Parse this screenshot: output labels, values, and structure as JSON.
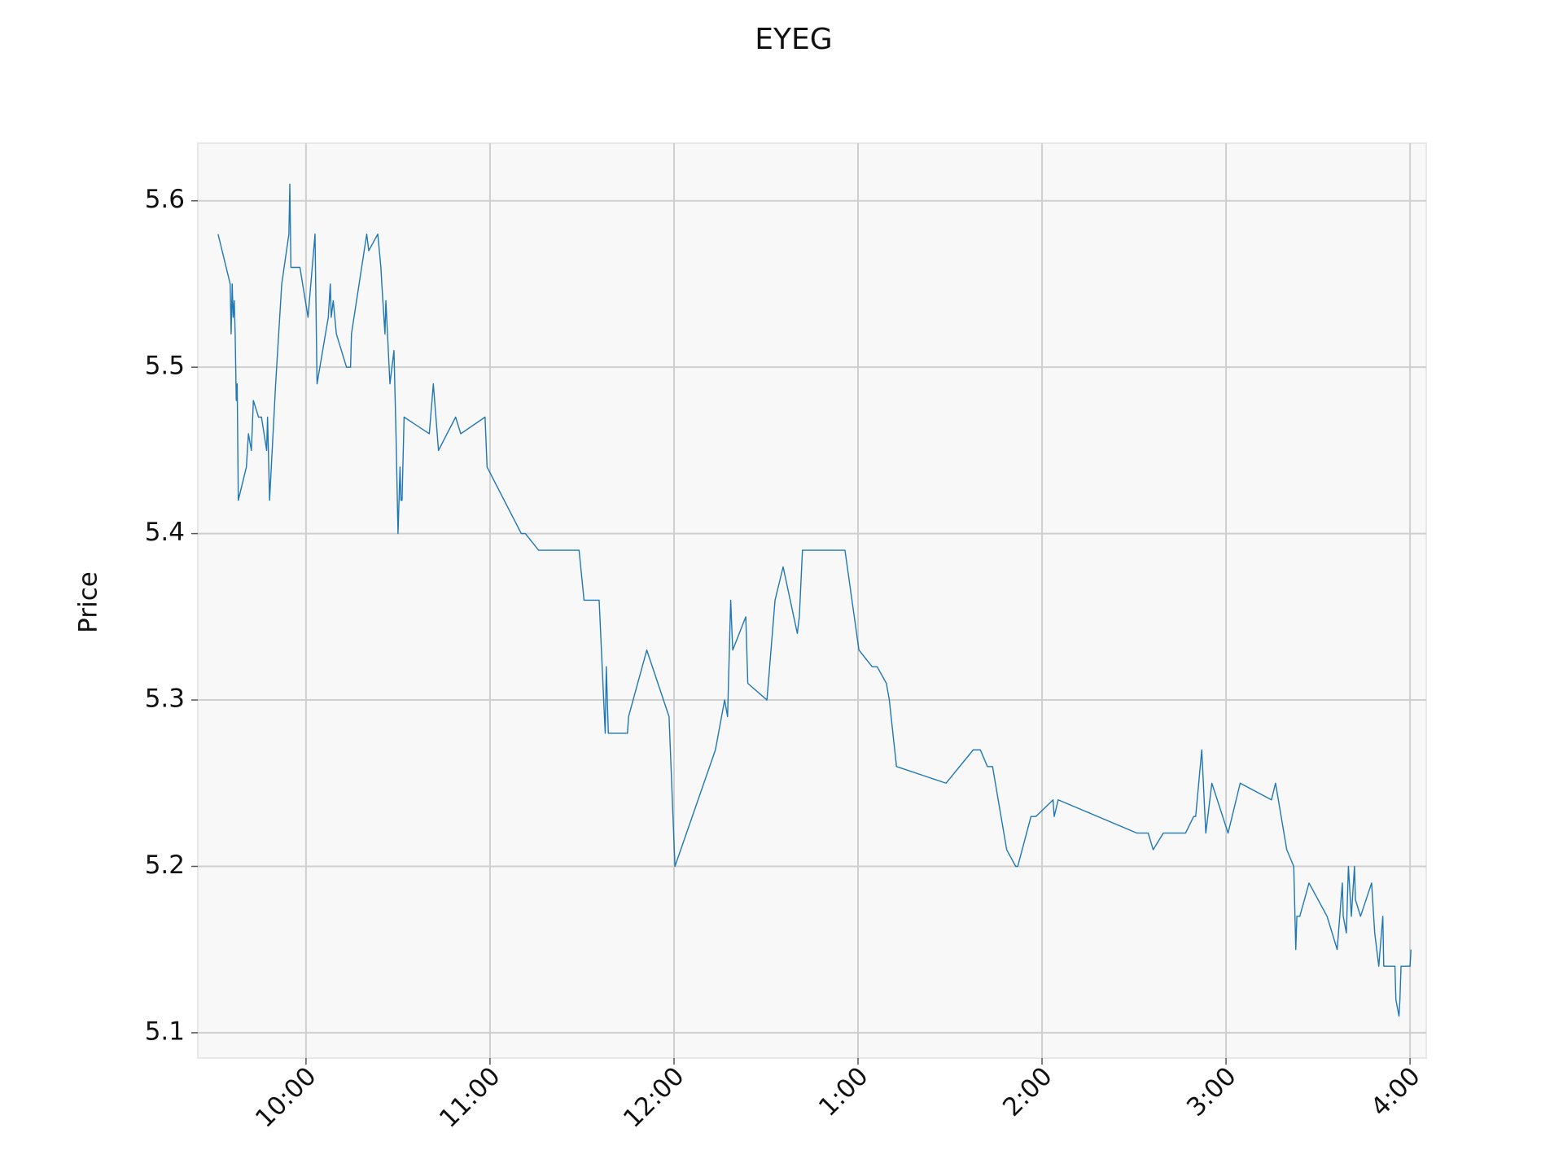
{
  "chart_data": {
    "type": "line",
    "title": "EYEG",
    "y_label": "Price",
    "x": [
      9.522,
      9.588,
      9.593,
      9.599,
      9.604,
      9.61,
      9.615,
      9.621,
      9.626,
      9.632,
      9.676,
      9.687,
      9.703,
      9.714,
      9.742,
      9.758,
      9.786,
      9.791,
      9.802,
      9.835,
      9.868,
      9.907,
      9.912,
      9.918,
      9.967,
      10.011,
      10.049,
      10.06,
      10.121,
      10.132,
      10.137,
      10.148,
      10.165,
      10.22,
      10.242,
      10.247,
      10.33,
      10.341,
      10.39,
      10.407,
      10.412,
      10.429,
      10.434,
      10.456,
      10.478,
      10.489,
      10.5,
      10.511,
      10.516,
      10.522,
      10.533,
      10.67,
      10.692,
      10.72,
      10.813,
      10.841,
      10.973,
      10.984,
      11.17,
      11.192,
      11.264,
      11.484,
      11.511,
      11.593,
      11.626,
      11.632,
      11.643,
      11.747,
      11.753,
      11.852,
      11.973,
      12.005,
      12.225,
      12.275,
      12.291,
      12.308,
      12.319,
      12.39,
      12.401,
      12.505,
      12.549,
      12.593,
      12.67,
      12.681,
      12.698,
      12.929,
      13.005,
      13.077,
      13.104,
      13.154,
      13.17,
      13.209,
      13.478,
      13.626,
      13.665,
      13.703,
      13.731,
      13.808,
      13.857,
      13.868,
      13.94,
      13.967,
      14.06,
      14.066,
      14.088,
      14.516,
      14.577,
      14.604,
      14.659,
      14.78,
      14.824,
      14.835,
      14.868,
      14.89,
      14.923,
      15.011,
      15.077,
      15.247,
      15.269,
      15.33,
      15.368,
      15.379,
      15.385,
      15.401,
      15.451,
      15.549,
      15.604,
      15.632,
      15.637,
      15.654,
      15.665,
      15.681,
      15.698,
      15.703,
      15.731,
      15.791,
      15.808,
      15.83,
      15.852,
      15.857,
      15.918,
      15.923,
      15.94,
      15.945,
      15.951,
      16.0,
      16.005
    ],
    "series": [
      {
        "name": "EYEG",
        "color": "#1f77b4",
        "values": [
          5.58,
          5.55,
          5.52,
          5.55,
          5.53,
          5.54,
          5.52,
          5.48,
          5.49,
          5.42,
          5.44,
          5.46,
          5.45,
          5.48,
          5.47,
          5.47,
          5.45,
          5.47,
          5.42,
          5.49,
          5.55,
          5.58,
          5.61,
          5.56,
          5.56,
          5.53,
          5.58,
          5.49,
          5.53,
          5.55,
          5.53,
          5.54,
          5.52,
          5.5,
          5.5,
          5.52,
          5.58,
          5.57,
          5.58,
          5.56,
          5.55,
          5.52,
          5.54,
          5.49,
          5.51,
          5.46,
          5.4,
          5.44,
          5.42,
          5.42,
          5.47,
          5.46,
          5.49,
          5.45,
          5.47,
          5.46,
          5.47,
          5.44,
          5.4,
          5.4,
          5.39,
          5.39,
          5.36,
          5.36,
          5.28,
          5.32,
          5.28,
          5.28,
          5.29,
          5.33,
          5.29,
          5.2,
          5.27,
          5.3,
          5.29,
          5.36,
          5.33,
          5.35,
          5.31,
          5.3,
          5.36,
          5.38,
          5.34,
          5.35,
          5.39,
          5.39,
          5.33,
          5.32,
          5.32,
          5.31,
          5.3,
          5.26,
          5.25,
          5.27,
          5.27,
          5.26,
          5.26,
          5.21,
          5.2,
          5.2,
          5.23,
          5.23,
          5.24,
          5.23,
          5.24,
          5.22,
          5.22,
          5.21,
          5.22,
          5.22,
          5.23,
          5.23,
          5.27,
          5.22,
          5.25,
          5.22,
          5.25,
          5.24,
          5.25,
          5.21,
          5.2,
          5.15,
          5.17,
          5.17,
          5.19,
          5.17,
          5.15,
          5.19,
          5.17,
          5.16,
          5.2,
          5.17,
          5.2,
          5.18,
          5.17,
          5.19,
          5.16,
          5.14,
          5.17,
          5.14,
          5.14,
          5.12,
          5.11,
          5.12,
          5.14,
          5.14,
          5.15
        ]
      }
    ],
    "xlim": [
      9.412,
      16.088
    ],
    "xticks": [
      {
        "value": 10,
        "label": "10:00"
      },
      {
        "value": 11,
        "label": "11:00"
      },
      {
        "value": 12,
        "label": "12:00"
      },
      {
        "value": 13,
        "label": "1:00"
      },
      {
        "value": 14,
        "label": "2:00"
      },
      {
        "value": 15,
        "label": "3:00"
      },
      {
        "value": 16,
        "label": "4:00"
      }
    ],
    "ylim": [
      5.0848,
      5.6346
    ],
    "yticks": [
      5.1,
      5.2,
      5.3,
      5.4,
      5.5,
      5.6
    ],
    "grid": true
  }
}
